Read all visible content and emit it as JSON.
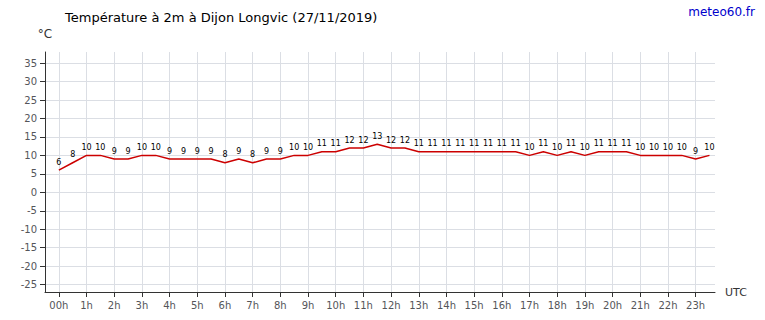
{
  "chart_data": {
    "type": "line",
    "title": "Température à 2m à Dijon Longvic (27/11/2019)",
    "ylabel": "°C",
    "xlabel": "UTC",
    "annotations": [
      {
        "text": "meteo60.fr",
        "color": "#0000cc"
      }
    ],
    "x": [
      0,
      0.5,
      1,
      1.5,
      2,
      2.5,
      3,
      3.5,
      4,
      4.5,
      5,
      5.5,
      6,
      6.5,
      7,
      7.5,
      8,
      8.5,
      9,
      9.5,
      10,
      10.5,
      11,
      11.5,
      12,
      12.5,
      13,
      13.5,
      14,
      14.5,
      15,
      15.5,
      16,
      16.5,
      17,
      17.5,
      18,
      18.5,
      19,
      19.5,
      20,
      20.5,
      21,
      21.5,
      22,
      22.5,
      23,
      23.5
    ],
    "values": [
      6,
      8,
      10,
      10,
      9,
      9,
      10,
      10,
      9,
      9,
      9,
      9,
      8,
      9,
      8,
      9,
      9,
      10,
      10,
      11,
      11,
      12,
      12,
      13,
      12,
      12,
      11,
      11,
      11,
      11,
      11,
      11,
      11,
      11,
      10,
      11,
      10,
      11,
      10,
      11,
      11,
      11,
      10,
      10,
      10,
      10,
      9,
      10
    ],
    "color": "#cc0000",
    "xlim": [
      -0.5,
      23.7
    ],
    "xticks": [
      {
        "value": 0,
        "label": "00h"
      },
      {
        "value": 1,
        "label": "1h"
      },
      {
        "value": 2,
        "label": "2h"
      },
      {
        "value": 3,
        "label": "3h"
      },
      {
        "value": 4,
        "label": "4h"
      },
      {
        "value": 5,
        "label": "5h"
      },
      {
        "value": 6,
        "label": "6h"
      },
      {
        "value": 7,
        "label": "7h"
      },
      {
        "value": 8,
        "label": "8h"
      },
      {
        "value": 9,
        "label": "9h"
      },
      {
        "value": 10,
        "label": "10h"
      },
      {
        "value": 11,
        "label": "11h"
      },
      {
        "value": 12,
        "label": "12h"
      },
      {
        "value": 13,
        "label": "13h"
      },
      {
        "value": 14,
        "label": "14h"
      },
      {
        "value": 15,
        "label": "15h"
      },
      {
        "value": 16,
        "label": "16h"
      },
      {
        "value": 17,
        "label": "17h"
      },
      {
        "value": 18,
        "label": "18h"
      },
      {
        "value": 19,
        "label": "19h"
      },
      {
        "value": 20,
        "label": "20h"
      },
      {
        "value": 21,
        "label": "21h"
      },
      {
        "value": 22,
        "label": "22h"
      },
      {
        "value": 23,
        "label": "23h"
      }
    ],
    "ylim": [
      -27,
      38
    ],
    "yticks": [
      -25,
      -20,
      -15,
      -10,
      -5,
      0,
      5,
      10,
      15,
      20,
      25,
      30,
      35
    ],
    "grid": true,
    "data_labels": true
  }
}
